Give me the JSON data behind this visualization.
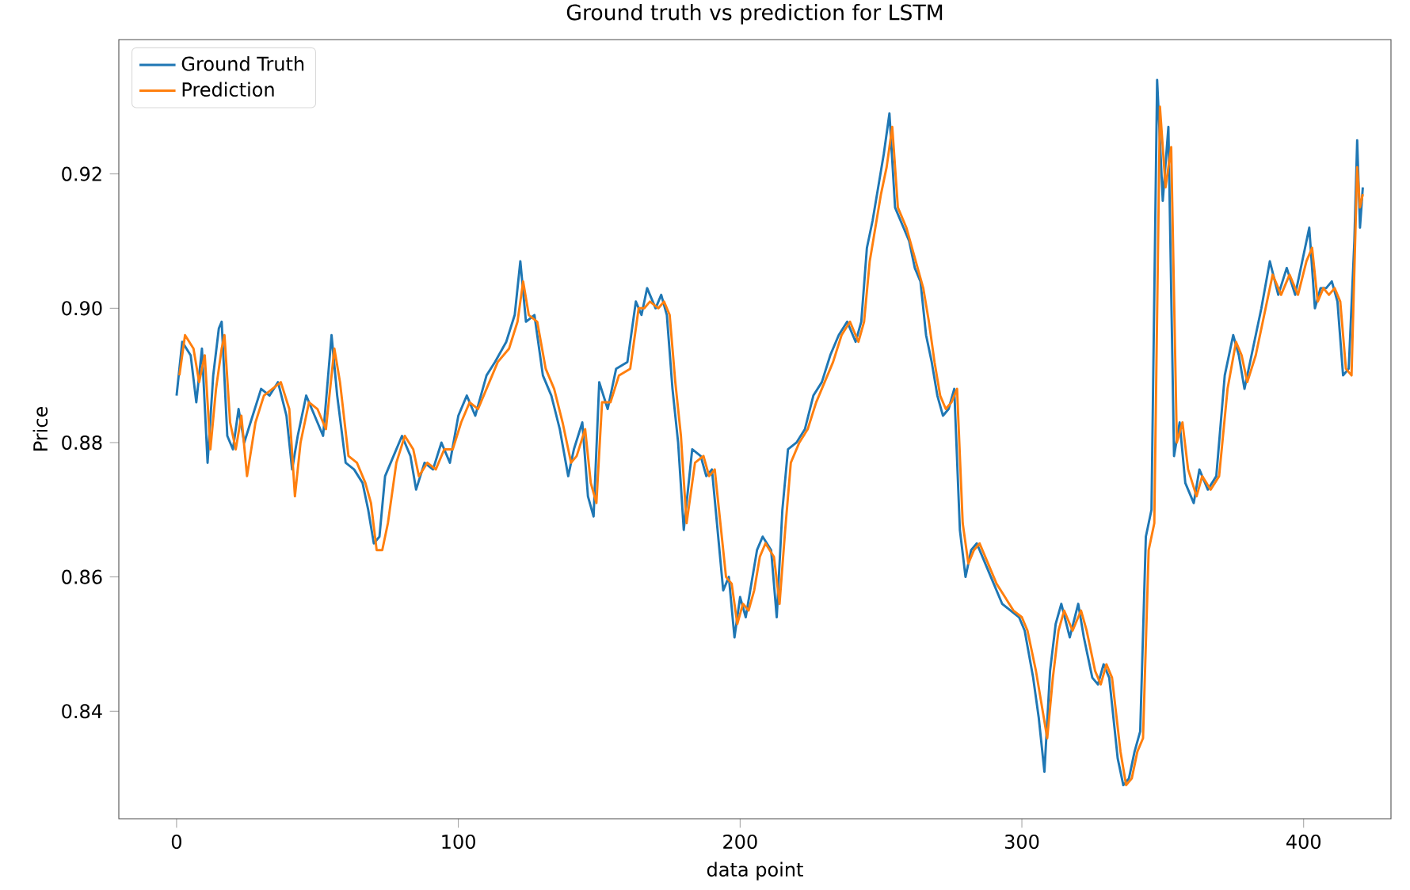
{
  "chart_data": {
    "type": "line",
    "title": "Ground truth vs prediction for LSTM",
    "xlabel": "data point",
    "ylabel": "Price",
    "xlim": [
      -20.5,
      431
    ],
    "xticks": [
      0,
      100,
      200,
      300,
      400
    ],
    "ylim": [
      0.824,
      0.94
    ],
    "yticks": [
      0.84,
      0.86,
      0.88,
      {
        "value": 0.9,
        "label": "0.90"
      },
      0.92
    ],
    "legend": "top left",
    "grid": false,
    "marker": "none",
    "line_style": "solid",
    "series": [
      {
        "name": "Ground Truth",
        "color": "#1f77b4",
        "x": [
          0,
          2,
          5,
          7,
          9,
          11,
          13,
          15,
          16,
          18,
          20,
          22,
          24,
          27,
          30,
          33,
          36,
          39,
          41,
          43,
          46,
          49,
          52,
          55,
          57,
          60,
          63,
          66,
          68,
          70,
          72,
          74,
          77,
          80,
          83,
          85,
          88,
          91,
          94,
          97,
          100,
          103,
          106,
          110,
          113,
          117,
          120,
          122,
          124,
          127,
          130,
          133,
          136,
          139,
          141,
          144,
          146,
          148,
          150,
          153,
          156,
          160,
          163,
          165,
          167,
          170,
          172,
          174,
          176,
          178,
          180,
          183,
          186,
          188,
          190,
          192,
          194,
          196,
          198,
          200,
          202,
          204,
          206,
          208,
          211,
          213,
          215,
          217,
          220,
          223,
          226,
          229,
          232,
          235,
          238,
          241,
          243,
          245,
          247,
          249,
          251,
          253,
          255,
          258,
          260,
          262,
          264,
          266,
          268,
          270,
          272,
          274,
          276,
          278,
          280,
          282,
          284,
          287,
          290,
          293,
          296,
          299,
          301,
          304,
          306,
          308,
          310,
          312,
          314,
          317,
          320,
          322,
          325,
          327,
          329,
          331,
          334,
          336,
          338,
          340,
          342,
          344,
          346,
          348,
          350,
          352,
          354,
          356,
          358,
          361,
          363,
          366,
          369,
          372,
          375,
          377,
          379,
          382,
          385,
          388,
          391,
          394,
          397,
          400,
          402,
          404,
          406,
          408,
          410,
          412,
          414,
          416,
          418,
          419,
          420,
          421
        ],
        "values": [
          0.887,
          0.895,
          0.893,
          0.886,
          0.894,
          0.877,
          0.89,
          0.897,
          0.898,
          0.881,
          0.879,
          0.885,
          0.88,
          0.884,
          0.888,
          0.887,
          0.889,
          0.884,
          0.876,
          0.881,
          0.887,
          0.884,
          0.881,
          0.896,
          0.887,
          0.877,
          0.876,
          0.874,
          0.87,
          0.865,
          0.866,
          0.875,
          0.878,
          0.881,
          0.878,
          0.873,
          0.877,
          0.876,
          0.88,
          0.877,
          0.884,
          0.887,
          0.884,
          0.89,
          0.892,
          0.895,
          0.899,
          0.907,
          0.898,
          0.899,
          0.89,
          0.887,
          0.882,
          0.875,
          0.879,
          0.883,
          0.872,
          0.869,
          0.889,
          0.885,
          0.891,
          0.892,
          0.901,
          0.899,
          0.903,
          0.9,
          0.902,
          0.899,
          0.888,
          0.88,
          0.867,
          0.879,
          0.878,
          0.875,
          0.876,
          0.867,
          0.858,
          0.86,
          0.851,
          0.857,
          0.854,
          0.859,
          0.864,
          0.866,
          0.864,
          0.854,
          0.87,
          0.879,
          0.88,
          0.882,
          0.887,
          0.889,
          0.893,
          0.896,
          0.898,
          0.895,
          0.898,
          0.909,
          0.913,
          0.918,
          0.923,
          0.929,
          0.915,
          0.912,
          0.91,
          0.906,
          0.904,
          0.896,
          0.892,
          0.887,
          0.884,
          0.885,
          0.888,
          0.867,
          0.86,
          0.864,
          0.865,
          0.862,
          0.859,
          0.856,
          0.855,
          0.854,
          0.852,
          0.845,
          0.839,
          0.831,
          0.846,
          0.853,
          0.856,
          0.851,
          0.856,
          0.851,
          0.845,
          0.844,
          0.847,
          0.845,
          0.833,
          0.829,
          0.83,
          0.834,
          0.837,
          0.866,
          0.87,
          0.934,
          0.916,
          0.927,
          0.878,
          0.883,
          0.874,
          0.871,
          0.876,
          0.873,
          0.875,
          0.89,
          0.896,
          0.893,
          0.888,
          0.894,
          0.9,
          0.907,
          0.902,
          0.906,
          0.902,
          0.908,
          0.912,
          0.9,
          0.903,
          0.903,
          0.904,
          0.901,
          0.89,
          0.891,
          0.91,
          0.925,
          0.912,
          0.918
        ]
      },
      {
        "name": "Prediction",
        "color": "#ff7f0e",
        "x": [
          1,
          3,
          6,
          8,
          10,
          12,
          14,
          16,
          17,
          19,
          21,
          23,
          25,
          28,
          31,
          34,
          37,
          40,
          42,
          44,
          47,
          50,
          53,
          56,
          58,
          61,
          64,
          67,
          69,
          71,
          73,
          75,
          78,
          81,
          84,
          86,
          89,
          92,
          95,
          98,
          101,
          104,
          107,
          111,
          114,
          118,
          121,
          123,
          125,
          128,
          131,
          134,
          137,
          140,
          142,
          145,
          147,
          149,
          151,
          154,
          157,
          161,
          164,
          166,
          168,
          171,
          173,
          175,
          177,
          179,
          181,
          184,
          187,
          189,
          191,
          193,
          195,
          197,
          199,
          201,
          203,
          205,
          207,
          209,
          212,
          214,
          216,
          218,
          221,
          224,
          227,
          230,
          233,
          236,
          239,
          242,
          244,
          246,
          248,
          250,
          252,
          254,
          256,
          259,
          261,
          263,
          265,
          267,
          269,
          271,
          273,
          275,
          277,
          279,
          281,
          283,
          285,
          288,
          291,
          294,
          297,
          300,
          302,
          305,
          307,
          309,
          311,
          313,
          315,
          318,
          321,
          323,
          326,
          328,
          330,
          332,
          335,
          337,
          339,
          341,
          343,
          345,
          347,
          349,
          351,
          353,
          355,
          357,
          359,
          362,
          364,
          367,
          370,
          373,
          376,
          378,
          380,
          383,
          386,
          389,
          392,
          395,
          398,
          401,
          403,
          405,
          407,
          409,
          411,
          413,
          415,
          417,
          419,
          420,
          421
        ],
        "values": [
          0.89,
          0.896,
          0.894,
          0.889,
          0.893,
          0.879,
          0.888,
          0.894,
          0.896,
          0.883,
          0.879,
          0.884,
          0.875,
          0.883,
          0.887,
          0.888,
          0.889,
          0.885,
          0.872,
          0.88,
          0.886,
          0.885,
          0.882,
          0.894,
          0.889,
          0.878,
          0.877,
          0.874,
          0.871,
          0.864,
          0.864,
          0.868,
          0.877,
          0.881,
          0.879,
          0.875,
          0.877,
          0.876,
          0.879,
          0.879,
          0.883,
          0.886,
          0.885,
          0.889,
          0.892,
          0.894,
          0.898,
          0.904,
          0.899,
          0.898,
          0.891,
          0.888,
          0.883,
          0.877,
          0.878,
          0.882,
          0.874,
          0.871,
          0.886,
          0.886,
          0.89,
          0.891,
          0.9,
          0.9,
          0.901,
          0.9,
          0.901,
          0.899,
          0.889,
          0.881,
          0.868,
          0.877,
          0.878,
          0.875,
          0.876,
          0.868,
          0.86,
          0.859,
          0.853,
          0.856,
          0.855,
          0.858,
          0.863,
          0.865,
          0.863,
          0.856,
          0.867,
          0.877,
          0.88,
          0.882,
          0.886,
          0.889,
          0.892,
          0.896,
          0.898,
          0.895,
          0.898,
          0.907,
          0.912,
          0.917,
          0.921,
          0.927,
          0.915,
          0.912,
          0.909,
          0.906,
          0.903,
          0.898,
          0.892,
          0.887,
          0.885,
          0.886,
          0.888,
          0.868,
          0.862,
          0.864,
          0.865,
          0.862,
          0.859,
          0.857,
          0.855,
          0.854,
          0.852,
          0.846,
          0.841,
          0.836,
          0.845,
          0.852,
          0.855,
          0.852,
          0.855,
          0.852,
          0.846,
          0.844,
          0.847,
          0.845,
          0.834,
          0.829,
          0.83,
          0.834,
          0.836,
          0.864,
          0.868,
          0.93,
          0.918,
          0.924,
          0.88,
          0.883,
          0.876,
          0.872,
          0.875,
          0.873,
          0.875,
          0.888,
          0.895,
          0.893,
          0.889,
          0.893,
          0.899,
          0.905,
          0.902,
          0.905,
          0.902,
          0.907,
          0.909,
          0.901,
          0.903,
          0.902,
          0.903,
          0.901,
          0.891,
          0.89,
          0.921,
          0.915,
          0.917
        ]
      }
    ]
  }
}
